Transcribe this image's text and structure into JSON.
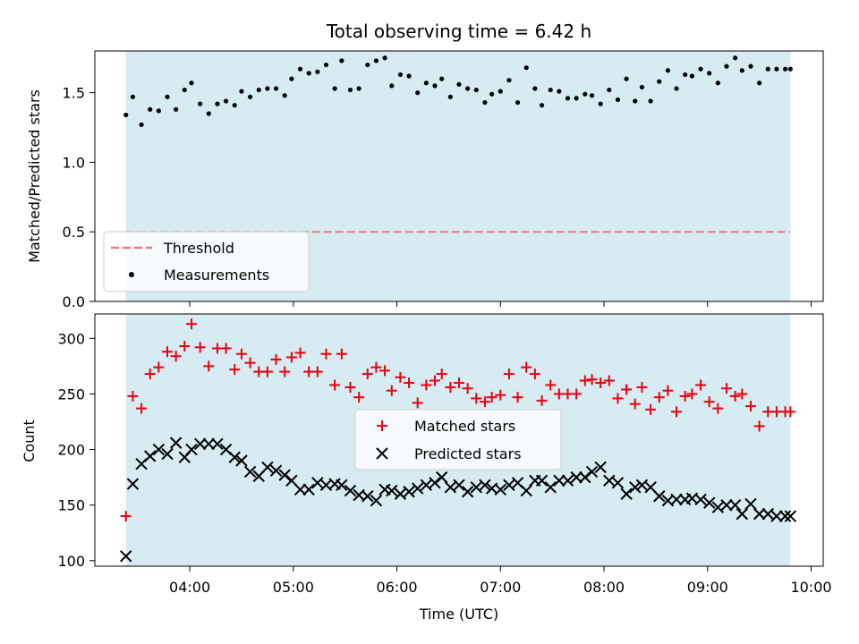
{
  "chart_data": [
    {
      "type": "scatter",
      "title": "Total observing time = 6.42 h",
      "xlabel": "",
      "ylabel": "Matched/Predicted stars",
      "ylim": [
        0,
        1.8
      ],
      "y_ticks": [
        "0.0",
        "0.5",
        "1.0",
        "1.5"
      ],
      "legend_position": "lower-left",
      "shaded_interval": [
        "03:23",
        "09:48"
      ],
      "threshold": {
        "name": "Threshold",
        "value": 0.5,
        "color": "#f07a7a"
      },
      "series": [
        {
          "name": "Measurements",
          "color": "#000000",
          "x": [
            "03:23",
            "03:27",
            "03:32",
            "03:37",
            "03:42",
            "03:47",
            "03:52",
            "03:57",
            "04:01",
            "04:06",
            "04:11",
            "04:16",
            "04:21",
            "04:26",
            "04:30",
            "04:35",
            "04:40",
            "04:45",
            "04:50",
            "04:55",
            "04:59",
            "05:04",
            "05:09",
            "05:14",
            "05:19",
            "05:24",
            "05:28",
            "05:33",
            "05:38",
            "05:43",
            "05:48",
            "05:53",
            "05:57",
            "06:02",
            "06:07",
            "06:12",
            "06:17",
            "06:22",
            "06:26",
            "06:31",
            "06:36",
            "06:41",
            "06:46",
            "06:51",
            "06:55",
            "07:00",
            "07:05",
            "07:10",
            "07:15",
            "07:20",
            "07:24",
            "07:29",
            "07:34",
            "07:39",
            "07:44",
            "07:49",
            "07:53",
            "07:58",
            "08:03",
            "08:08",
            "08:13",
            "08:18",
            "08:22",
            "08:27",
            "08:32",
            "08:37",
            "08:42",
            "08:47",
            "08:51",
            "08:56",
            "09:01",
            "09:06",
            "09:11",
            "09:16",
            "09:20",
            "09:25",
            "09:30",
            "09:35",
            "09:40",
            "09:45",
            "09:48"
          ],
          "y": [
            1.34,
            1.47,
            1.27,
            1.38,
            1.37,
            1.47,
            1.38,
            1.52,
            1.57,
            1.42,
            1.35,
            1.42,
            1.44,
            1.41,
            1.51,
            1.47,
            1.52,
            1.53,
            1.53,
            1.48,
            1.6,
            1.67,
            1.64,
            1.65,
            1.7,
            1.53,
            1.73,
            1.52,
            1.53,
            1.7,
            1.73,
            1.75,
            1.55,
            1.63,
            1.62,
            1.5,
            1.57,
            1.55,
            1.6,
            1.47,
            1.56,
            1.53,
            1.52,
            1.43,
            1.49,
            1.51,
            1.59,
            1.43,
            1.68,
            1.53,
            1.41,
            1.52,
            1.51,
            1.46,
            1.46,
            1.49,
            1.48,
            1.42,
            1.52,
            1.45,
            1.6,
            1.44,
            1.54,
            1.44,
            1.58,
            1.66,
            1.53,
            1.63,
            1.62,
            1.67,
            1.64,
            1.57,
            1.69,
            1.75,
            1.66,
            1.69,
            1.57,
            1.67,
            1.67,
            1.67,
            1.67
          ]
        }
      ]
    },
    {
      "type": "scatter",
      "title": "",
      "xlabel": "Time (UTC)",
      "ylabel": "Count",
      "ylim": [
        95,
        322
      ],
      "y_ticks": [
        "100",
        "150",
        "200",
        "250",
        "300"
      ],
      "x_ticks": [
        "04:00",
        "05:00",
        "06:00",
        "07:00",
        "08:00",
        "09:00",
        "10:00"
      ],
      "legend_position": "center",
      "shaded_interval": [
        "03:23",
        "09:48"
      ],
      "series": [
        {
          "name": "Matched stars",
          "marker": "plus",
          "color": "#e8000b",
          "x": [
            "03:23",
            "03:27",
            "03:32",
            "03:37",
            "03:42",
            "03:47",
            "03:52",
            "03:57",
            "04:01",
            "04:06",
            "04:11",
            "04:16",
            "04:21",
            "04:26",
            "04:30",
            "04:35",
            "04:40",
            "04:45",
            "04:50",
            "04:55",
            "04:59",
            "05:04",
            "05:09",
            "05:14",
            "05:19",
            "05:24",
            "05:28",
            "05:33",
            "05:38",
            "05:43",
            "05:48",
            "05:53",
            "05:57",
            "06:02",
            "06:07",
            "06:12",
            "06:17",
            "06:22",
            "06:26",
            "06:31",
            "06:36",
            "06:41",
            "06:46",
            "06:51",
            "06:55",
            "07:00",
            "07:05",
            "07:10",
            "07:15",
            "07:20",
            "07:24",
            "07:29",
            "07:34",
            "07:39",
            "07:44",
            "07:49",
            "07:53",
            "07:58",
            "08:03",
            "08:08",
            "08:13",
            "08:18",
            "08:22",
            "08:27",
            "08:32",
            "08:37",
            "08:42",
            "08:47",
            "08:51",
            "08:56",
            "09:01",
            "09:06",
            "09:11",
            "09:16",
            "09:20",
            "09:25",
            "09:30",
            "09:35",
            "09:40",
            "09:45",
            "09:48"
          ],
          "y": [
            140,
            248,
            237,
            268,
            274,
            288,
            284,
            293,
            313,
            292,
            275,
            291,
            291,
            272,
            286,
            278,
            270,
            270,
            281,
            270,
            283,
            287,
            270,
            270,
            286,
            258,
            286,
            256,
            247,
            268,
            274,
            271,
            253,
            265,
            260,
            242,
            258,
            262,
            268,
            256,
            260,
            255,
            246,
            243,
            247,
            249,
            268,
            247,
            274,
            268,
            244,
            258,
            250,
            250,
            250,
            262,
            263,
            260,
            262,
            246,
            254,
            241,
            256,
            236,
            247,
            253,
            234,
            248,
            250,
            258,
            243,
            237,
            255,
            248,
            250,
            239,
            221,
            234,
            234,
            234,
            234
          ]
        },
        {
          "name": "Predicted stars",
          "marker": "x",
          "color": "#000000",
          "x": [
            "03:23",
            "03:27",
            "03:32",
            "03:37",
            "03:42",
            "03:47",
            "03:52",
            "03:57",
            "04:01",
            "04:06",
            "04:11",
            "04:16",
            "04:21",
            "04:26",
            "04:30",
            "04:35",
            "04:40",
            "04:45",
            "04:50",
            "04:55",
            "04:59",
            "05:04",
            "05:09",
            "05:14",
            "05:19",
            "05:24",
            "05:28",
            "05:33",
            "05:38",
            "05:43",
            "05:48",
            "05:53",
            "05:57",
            "06:02",
            "06:07",
            "06:12",
            "06:17",
            "06:22",
            "06:26",
            "06:31",
            "06:36",
            "06:41",
            "06:46",
            "06:51",
            "06:55",
            "07:00",
            "07:05",
            "07:10",
            "07:15",
            "07:20",
            "07:24",
            "07:29",
            "07:34",
            "07:39",
            "07:44",
            "07:49",
            "07:53",
            "07:58",
            "08:03",
            "08:08",
            "08:13",
            "08:18",
            "08:22",
            "08:27",
            "08:32",
            "08:37",
            "08:42",
            "08:47",
            "08:51",
            "08:56",
            "09:01",
            "09:06",
            "09:11",
            "09:16",
            "09:20",
            "09:25",
            "09:30",
            "09:35",
            "09:40",
            "09:45",
            "09:48"
          ],
          "y": [
            104,
            169,
            187,
            194,
            200,
            196,
            206,
            193,
            200,
            205,
            205,
            205,
            200,
            193,
            190,
            180,
            176,
            184,
            181,
            177,
            172,
            164,
            164,
            170,
            168,
            169,
            168,
            163,
            159,
            158,
            154,
            164,
            163,
            160,
            162,
            165,
            168,
            170,
            175,
            166,
            168,
            162,
            166,
            168,
            165,
            164,
            168,
            170,
            163,
            172,
            172,
            166,
            172,
            172,
            175,
            175,
            180,
            184,
            172,
            170,
            160,
            166,
            168,
            166,
            158,
            154,
            155,
            155,
            156,
            155,
            152,
            148,
            150,
            150,
            142,
            151,
            142,
            142,
            140,
            140,
            140
          ]
        }
      ]
    }
  ]
}
